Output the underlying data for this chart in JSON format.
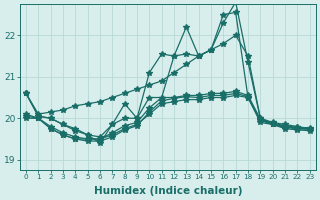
{
  "xlabel": "Humidex (Indice chaleur)",
  "background_color": "#d8eeed",
  "grid_color": "#b8d8d5",
  "line_color": "#1a6e68",
  "xlim": [
    -0.5,
    23.5
  ],
  "ylim": [
    18.75,
    22.75
  ],
  "yticks": [
    19,
    20,
    21,
    22
  ],
  "xticks": [
    0,
    1,
    2,
    3,
    4,
    5,
    6,
    7,
    8,
    9,
    10,
    11,
    12,
    13,
    14,
    15,
    16,
    17,
    18,
    19,
    20,
    21,
    22,
    23
  ],
  "series": [
    [
      20.6,
      20.05,
      20.0,
      19.85,
      19.75,
      19.6,
      19.55,
      19.85,
      20.0,
      20.0,
      20.5,
      20.5,
      21.5,
      21.55,
      21.5,
      21.65,
      22.5,
      22.55,
      20.5,
      19.9,
      19.85,
      19.8,
      19.75,
      19.75
    ],
    [
      20.0,
      20.0,
      19.75,
      19.6,
      19.5,
      19.5,
      19.5,
      19.6,
      19.75,
      19.85,
      20.1,
      20.35,
      20.4,
      20.45,
      20.45,
      20.5,
      20.5,
      20.55,
      20.5,
      19.95,
      19.85,
      19.78,
      19.75,
      19.73
    ],
    [
      20.05,
      20.0,
      19.8,
      19.65,
      19.55,
      19.5,
      19.5,
      19.65,
      19.82,
      19.9,
      20.25,
      20.5,
      20.5,
      20.55,
      20.55,
      20.6,
      20.6,
      20.65,
      20.55,
      19.98,
      19.88,
      19.82,
      19.78,
      19.77
    ],
    [
      20.1,
      20.0,
      19.75,
      19.6,
      19.5,
      19.45,
      19.45,
      19.55,
      19.72,
      19.82,
      20.15,
      20.42,
      20.48,
      20.52,
      20.5,
      20.55,
      20.55,
      20.6,
      20.52,
      19.96,
      19.86,
      19.8,
      19.76,
      19.75
    ]
  ],
  "series_volatile": [
    20.6,
    20.05,
    20.0,
    19.85,
    19.7,
    19.6,
    19.4,
    19.85,
    20.35,
    20.0,
    21.1,
    21.55,
    21.5,
    22.2,
    21.5,
    21.65,
    22.3,
    22.8,
    21.35,
    20.0,
    19.85,
    19.75,
    19.72,
    19.7
  ],
  "series_straight": [
    20.6,
    20.1,
    20.15,
    20.2,
    20.3,
    20.35,
    20.4,
    20.5,
    20.6,
    20.7,
    20.8,
    20.9,
    21.1,
    21.3,
    21.5,
    21.65,
    21.8,
    22.0,
    21.5,
    20.0,
    19.9,
    19.85,
    19.8,
    19.75
  ],
  "marker": "*",
  "marker_size": 4,
  "linewidth": 0.9,
  "font_color": "#1a6e68",
  "tick_fontsize": 6,
  "xlabel_fontsize": 7.5
}
